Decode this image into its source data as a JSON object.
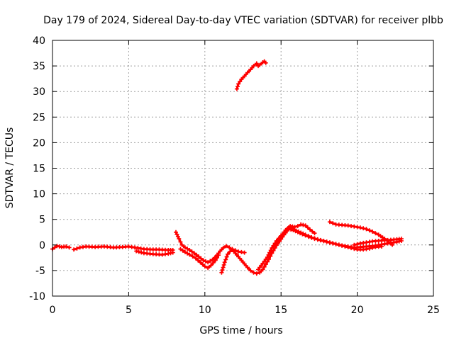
{
  "chart_data": {
    "type": "scatter",
    "title": "Day 179 of 2024, Sidereal Day-to-day VTEC variation (SDTVAR) for receiver plbb",
    "xlabel": "GPS time / hours",
    "ylabel": "SDTVAR / TECUs",
    "xlim": [
      0,
      25
    ],
    "ylim": [
      -10,
      40
    ],
    "xticks": [
      0,
      5,
      10,
      15,
      20,
      25
    ],
    "yticks": [
      -10,
      -5,
      0,
      5,
      10,
      15,
      20,
      25,
      30,
      35,
      40
    ],
    "grid": true,
    "series": [
      {
        "name": "SDTVAR",
        "color": "#ff0000",
        "marker": "plus",
        "segments": [
          [
            [
              0.0,
              -0.8
            ],
            [
              0.3,
              -0.2
            ],
            [
              0.6,
              -0.4
            ],
            [
              0.9,
              -0.3
            ],
            [
              1.1,
              -0.5
            ]
          ],
          [
            [
              1.4,
              -0.9
            ],
            [
              1.8,
              -0.5
            ],
            [
              2.2,
              -0.3
            ],
            [
              2.8,
              -0.4
            ],
            [
              3.4,
              -0.3
            ],
            [
              4.0,
              -0.5
            ],
            [
              4.6,
              -0.4
            ],
            [
              5.0,
              -0.3
            ],
            [
              5.6,
              -0.6
            ],
            [
              6.0,
              -0.8
            ],
            [
              6.6,
              -0.9
            ],
            [
              7.0,
              -0.9
            ],
            [
              7.6,
              -1.0
            ],
            [
              7.9,
              -1.0
            ]
          ],
          [
            [
              5.5,
              -1.2
            ],
            [
              6.0,
              -1.6
            ],
            [
              6.6,
              -1.8
            ],
            [
              7.2,
              -1.9
            ],
            [
              7.6,
              -1.7
            ],
            [
              7.9,
              -1.5
            ]
          ],
          [
            [
              8.1,
              2.5
            ],
            [
              8.3,
              1.2
            ],
            [
              8.5,
              0.0
            ],
            [
              8.7,
              -0.5
            ],
            [
              9.0,
              -1.0
            ],
            [
              9.3,
              -1.6
            ],
            [
              9.6,
              -2.3
            ],
            [
              9.9,
              -3.0
            ],
            [
              10.2,
              -3.4
            ],
            [
              10.5,
              -2.9
            ],
            [
              10.8,
              -2.0
            ],
            [
              11.0,
              -1.2
            ],
            [
              11.2,
              -0.6
            ],
            [
              11.4,
              -0.2
            ],
            [
              11.6,
              -0.5
            ],
            [
              11.8,
              -1.0
            ],
            [
              12.0,
              -1.6
            ],
            [
              12.2,
              -2.3
            ],
            [
              12.4,
              -3.0
            ],
            [
              12.6,
              -3.7
            ],
            [
              12.8,
              -4.4
            ],
            [
              13.0,
              -5.0
            ],
            [
              13.2,
              -5.4
            ],
            [
              13.4,
              -5.6
            ],
            [
              13.6,
              -5.4
            ],
            [
              13.8,
              -4.8
            ],
            [
              14.0,
              -3.8
            ],
            [
              14.2,
              -2.8
            ],
            [
              14.4,
              -1.6
            ],
            [
              14.6,
              -0.6
            ],
            [
              14.8,
              0.5
            ],
            [
              15.0,
              1.5
            ],
            [
              15.2,
              2.4
            ],
            [
              15.4,
              3.1
            ],
            [
              15.6,
              3.4
            ],
            [
              15.8,
              3.2
            ],
            [
              16.0,
              2.8
            ],
            [
              16.3,
              2.4
            ],
            [
              16.6,
              2.0
            ],
            [
              17.0,
              1.5
            ],
            [
              17.4,
              1.1
            ],
            [
              17.8,
              0.8
            ],
            [
              18.2,
              0.5
            ],
            [
              18.6,
              0.2
            ],
            [
              19.0,
              -0.1
            ],
            [
              19.4,
              -0.3
            ],
            [
              19.8,
              -0.5
            ],
            [
              20.2,
              -0.4
            ],
            [
              20.6,
              -0.3
            ],
            [
              21.0,
              -0.2
            ],
            [
              21.4,
              0.0
            ],
            [
              21.8,
              0.2
            ],
            [
              22.2,
              0.4
            ],
            [
              22.6,
              0.6
            ],
            [
              22.9,
              0.8
            ]
          ],
          [
            [
              8.4,
              -0.8
            ],
            [
              8.7,
              -1.4
            ],
            [
              9.0,
              -1.9
            ],
            [
              9.4,
              -2.6
            ],
            [
              9.7,
              -3.4
            ],
            [
              10.0,
              -4.2
            ],
            [
              10.2,
              -4.5
            ],
            [
              10.4,
              -4.0
            ],
            [
              10.7,
              -3.0
            ],
            [
              10.9,
              -2.0
            ]
          ],
          [
            [
              11.1,
              -5.4
            ],
            [
              11.3,
              -3.4
            ],
            [
              11.5,
              -1.8
            ],
            [
              11.8,
              -0.8
            ],
            [
              12.2,
              -1.3
            ],
            [
              12.6,
              -1.5
            ]
          ],
          [
            [
              13.5,
              -4.8
            ],
            [
              13.8,
              -3.6
            ],
            [
              14.1,
              -2.4
            ],
            [
              14.4,
              -0.6
            ],
            [
              14.7,
              0.8
            ],
            [
              15.0,
              1.8
            ],
            [
              15.3,
              2.9
            ],
            [
              15.6,
              3.7
            ],
            [
              15.9,
              3.5
            ],
            [
              16.1,
              3.7
            ],
            [
              16.3,
              4.0
            ],
            [
              16.6,
              3.8
            ],
            [
              16.9,
              3.0
            ],
            [
              17.2,
              2.3
            ]
          ],
          [
            [
              14.6,
              -0.3
            ],
            [
              14.9,
              0.7
            ],
            [
              15.2,
              2.0
            ],
            [
              15.5,
              3.1
            ],
            [
              15.8,
              2.9
            ],
            [
              16.1,
              2.5
            ],
            [
              16.4,
              2.1
            ],
            [
              16.8,
              1.6
            ],
            [
              17.2,
              1.2
            ],
            [
              17.6,
              0.9
            ],
            [
              18.0,
              0.6
            ],
            [
              18.4,
              0.3
            ],
            [
              18.8,
              0.0
            ],
            [
              19.2,
              -0.3
            ],
            [
              19.6,
              -0.6
            ],
            [
              20.0,
              -0.9
            ],
            [
              20.4,
              -0.9
            ],
            [
              20.8,
              -0.7
            ],
            [
              21.2,
              -0.4
            ],
            [
              21.6,
              -0.3
            ]
          ],
          [
            [
              19.8,
              0.0
            ],
            [
              20.2,
              0.3
            ],
            [
              20.6,
              0.5
            ],
            [
              21.0,
              0.7
            ],
            [
              21.4,
              0.8
            ],
            [
              21.8,
              0.9
            ],
            [
              22.2,
              1.0
            ],
            [
              22.6,
              1.1
            ],
            [
              22.9,
              1.2
            ]
          ],
          [
            [
              18.2,
              4.5
            ],
            [
              18.6,
              4.0
            ],
            [
              19.0,
              3.9
            ],
            [
              19.4,
              3.8
            ],
            [
              19.8,
              3.6
            ],
            [
              20.2,
              3.4
            ],
            [
              20.6,
              3.1
            ],
            [
              21.0,
              2.6
            ],
            [
              21.4,
              2.0
            ],
            [
              21.8,
              1.2
            ],
            [
              22.1,
              0.5
            ],
            [
              22.3,
              0.0
            ]
          ],
          [
            [
              12.1,
              30.5
            ],
            [
              12.2,
              31.5
            ],
            [
              12.4,
              32.4
            ],
            [
              12.6,
              33.0
            ],
            [
              12.8,
              33.7
            ],
            [
              13.0,
              34.3
            ],
            [
              13.2,
              35.0
            ],
            [
              13.4,
              35.5
            ],
            [
              13.5,
              35.0
            ],
            [
              13.6,
              35.2
            ],
            [
              13.8,
              35.7
            ],
            [
              13.9,
              35.9
            ],
            [
              14.0,
              35.6
            ]
          ]
        ]
      }
    ]
  }
}
